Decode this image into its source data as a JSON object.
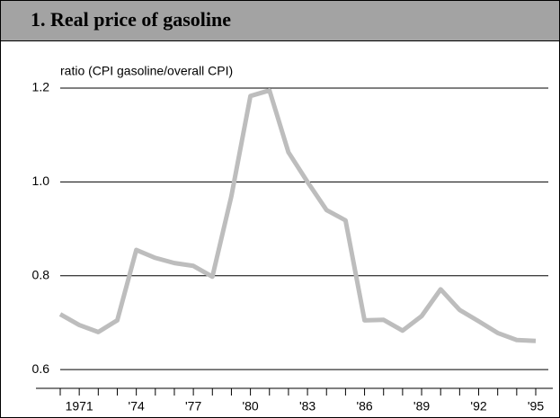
{
  "chart_data": {
    "type": "line",
    "title": "1. Real price of gasoline",
    "y_label": "ratio (CPI gasoline/overall CPI)",
    "x": [
      1970,
      1971,
      1972,
      1973,
      1974,
      1975,
      1976,
      1977,
      1978,
      1979,
      1980,
      1981,
      1982,
      1983,
      1984,
      1985,
      1986,
      1987,
      1988,
      1989,
      1990,
      1991,
      1992,
      1993,
      1994,
      1995
    ],
    "series": [
      {
        "color": "#bdbdbd",
        "values": [
          0.718,
          0.695,
          0.68,
          0.705,
          0.855,
          0.838,
          0.827,
          0.821,
          0.798,
          0.97,
          1.183,
          1.195,
          1.063,
          1.0,
          0.94,
          0.918,
          0.705,
          0.706,
          0.683,
          0.714,
          0.771,
          0.727,
          0.703,
          0.678,
          0.663,
          0.661
        ]
      }
    ],
    "xlim": [
      1970,
      1995.6
    ],
    "xticks": [
      1971,
      {
        "value": 1974,
        "label": "'74"
      },
      {
        "value": 1977,
        "label": "'77"
      },
      {
        "value": 1980,
        "label": "'80"
      },
      {
        "value": 1983,
        "label": "'83"
      },
      {
        "value": 1986,
        "label": "'86"
      },
      {
        "value": 1989,
        "label": "'89"
      },
      {
        "value": 1992,
        "label": "'92"
      },
      {
        "value": 1995,
        "label": "'95"
      }
    ],
    "ylim": [
      0.56,
      1.225
    ],
    "yticks": [
      0.6,
      0.8,
      {
        "value": 1,
        "label": "1.0"
      },
      1.2
    ],
    "grid": true
  }
}
